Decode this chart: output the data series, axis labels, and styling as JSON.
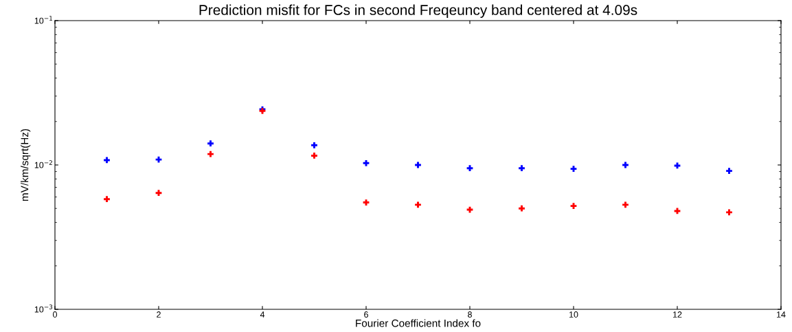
{
  "chart_data": {
    "type": "scatter",
    "title": "Prediction misfit for FCs in second Freqeuncy band centered at 4.09s",
    "xlabel": "Fourier Coefficient Index fo",
    "ylabel": "mV/km/sqrt(Hz)",
    "x": [
      1,
      2,
      3,
      4,
      5,
      6,
      7,
      8,
      9,
      10,
      11,
      12,
      13
    ],
    "series": [
      {
        "color": "#0000ff",
        "values": [
          0.0108,
          0.0109,
          0.0141,
          0.0243,
          0.0137,
          0.0103,
          0.01,
          0.0095,
          0.0095,
          0.0094,
          0.01,
          0.0099,
          0.0091
        ]
      },
      {
        "color": "#ff0000",
        "values": [
          0.0058,
          0.0064,
          0.0119,
          0.0237,
          0.0116,
          0.0055,
          0.0053,
          0.0049,
          0.005,
          0.0052,
          0.0053,
          0.0048,
          0.0047
        ]
      }
    ],
    "log": "y",
    "xlim": [
      0,
      14
    ],
    "xticks": [
      0,
      2,
      4,
      6,
      8,
      10,
      12,
      14
    ],
    "ylim": [
      0.001,
      0.1
    ],
    "yticks": [
      {
        "value": 0.001,
        "label": "10$^{−3}$"
      },
      {
        "value": 0.01,
        "label": "10$^{−2}$"
      },
      {
        "value": 0.1,
        "label": "10$^{−1}$"
      }
    ],
    "marker": "cross",
    "grid": false
  }
}
